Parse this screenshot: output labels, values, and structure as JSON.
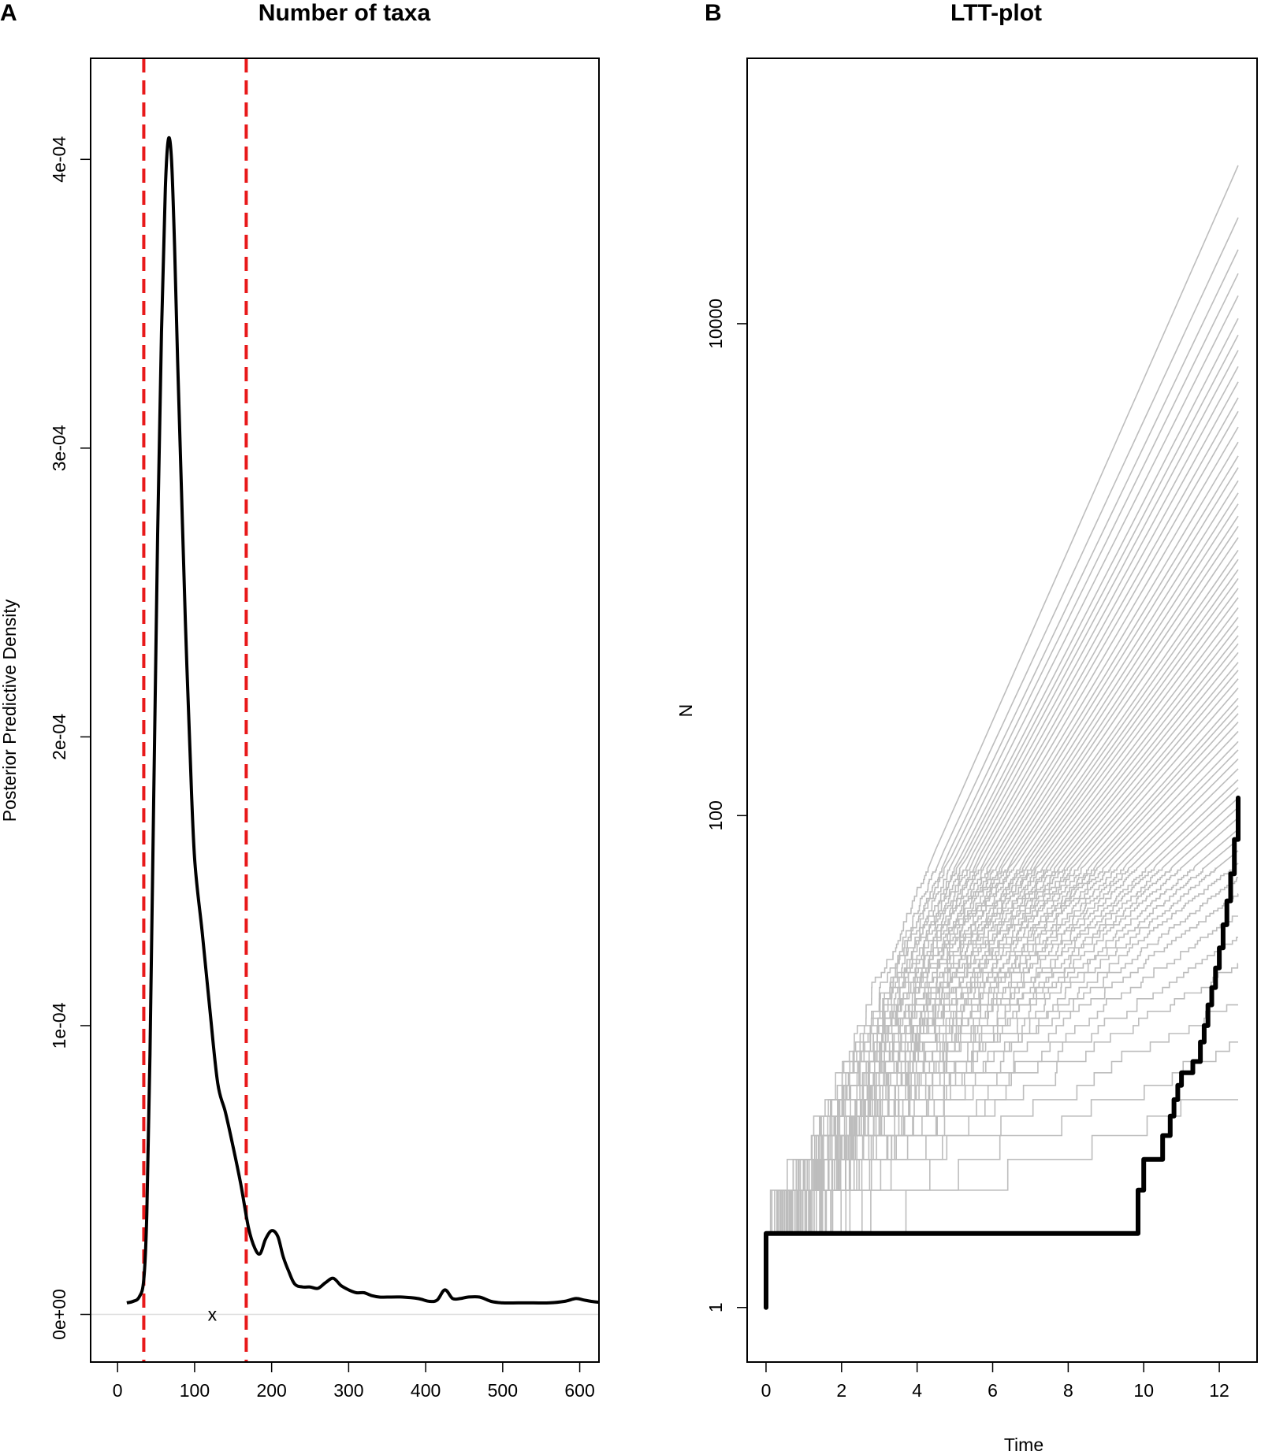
{
  "chart_data": [
    {
      "panel": "A",
      "type": "line",
      "title": "Number of taxa",
      "xlabel": "",
      "ylabel": "Posterior Predictive Density",
      "xlim": [
        -35,
        625
      ],
      "ylim": [
        -1.65e-05,
        0.000435
      ],
      "x_ticks": [
        0,
        100,
        200,
        300,
        400,
        500,
        600
      ],
      "x_tick_labels": [
        "0",
        "100",
        "200",
        "300",
        "400",
        "500",
        "600"
      ],
      "y_ticks": [
        0,
        0.0001,
        0.0002,
        0.0003,
        0.0004
      ],
      "y_tick_labels": [
        "0e+00",
        "1e-04",
        "2e-04",
        "3e-04",
        "4e-04"
      ],
      "series": [
        {
          "color": "#000000",
          "x": [
            12,
            20,
            28,
            34,
            38,
            42,
            47,
            52,
            57,
            62,
            66,
            70,
            74,
            78,
            83,
            88,
            94,
            100,
            110,
            120,
            130,
            140,
            150,
            160,
            170,
            178,
            185,
            192,
            200,
            208,
            215,
            222,
            230,
            240,
            250,
            260,
            270,
            280,
            290,
            300,
            310,
            320,
            330,
            340,
            350,
            370,
            390,
            405,
            415,
            425,
            435,
            445,
            455,
            470,
            485,
            500,
            520,
            540,
            560,
            580,
            595,
            605,
            615,
            625
          ],
          "y": [
            4e-06,
            4.5e-06,
            6e-06,
            1.2e-05,
            3.5e-05,
            9e-05,
            0.00018,
            0.00027,
            0.00034,
            0.00039,
            0.000407,
            0.0004,
            0.00037,
            0.00033,
            0.000285,
            0.00024,
            0.000195,
            0.000158,
            0.000132,
            0.000105,
            8e-05,
            7e-05,
            5.8e-05,
            4.5e-05,
            3e-05,
            2.3e-05,
            2.1e-05,
            2.6e-05,
            2.9e-05,
            2.7e-05,
            2e-05,
            1.5e-05,
            1.05e-05,
            9.5e-06,
            9.5e-06,
            9e-06,
            1.1e-05,
            1.25e-05,
            1e-05,
            8.5e-06,
            7.5e-06,
            7.5e-06,
            6.5e-06,
            6e-06,
            6e-06,
            6e-06,
            5.5e-06,
            4.5e-06,
            5e-06,
            8.5e-06,
            5.5e-06,
            5.5e-06,
            6e-06,
            6e-06,
            4.5e-06,
            4e-06,
            4e-06,
            4e-06,
            4e-06,
            4.5e-06,
            5.5e-06,
            5e-06,
            4.5e-06,
            4.2e-06
          ]
        }
      ],
      "baseline_y": 0,
      "vlines": [
        34,
        167
      ],
      "vline_color": "#e8191a",
      "marker": {
        "x": 123,
        "y": 0,
        "symbol": "x"
      }
    },
    {
      "panel": "B",
      "type": "line",
      "title": "LTT-plot",
      "xlabel": "Time",
      "ylabel": "N",
      "yscale": "log",
      "xlim": [
        -0.5,
        13
      ],
      "ylim": [
        0.6,
        120000
      ],
      "x_ticks": [
        0,
        2,
        4,
        6,
        8,
        10,
        12
      ],
      "x_tick_labels": [
        "0",
        "2",
        "4",
        "6",
        "8",
        "10",
        "12"
      ],
      "y_ticks": [
        1,
        100,
        10000
      ],
      "y_tick_labels": [
        "1",
        "100",
        "10000"
      ],
      "simulated": {
        "color": "#bdbdbd",
        "t_start": 0,
        "t_end": 12.5,
        "n_start": 2,
        "n_final": [
          44000,
          27000,
          20000,
          16000,
          13000,
          10500,
          9000,
          7800,
          6700,
          5800,
          5000,
          4400,
          3800,
          3300,
          2900,
          2600,
          2300,
          2050,
          1850,
          1650,
          1500,
          1350,
          1200,
          1100,
          1000,
          920,
          840,
          770,
          700,
          640,
          590,
          540,
          500,
          460,
          420,
          390,
          360,
          330,
          300,
          280,
          260,
          240,
          220,
          200,
          185,
          170,
          155,
          140,
          130,
          118,
          108,
          98,
          88,
          80,
          72,
          64,
          56,
          48,
          40,
          32,
          25,
          18,
          12,
          8
        ]
      },
      "observed": {
        "color": "#000000",
        "t": [
          0,
          0,
          9.8,
          9.85,
          10.0,
          10.5,
          10.7,
          10.8,
          10.9,
          11.0,
          11.3,
          11.5,
          11.6,
          11.7,
          11.8,
          11.9,
          12.0,
          12.1,
          12.2,
          12.3,
          12.4,
          12.5
        ],
        "n": [
          1,
          2,
          2,
          3,
          4,
          5,
          6,
          7,
          8,
          9,
          10,
          12,
          14,
          17,
          20,
          24,
          29,
          36,
          45,
          58,
          80,
          118
        ]
      }
    }
  ]
}
